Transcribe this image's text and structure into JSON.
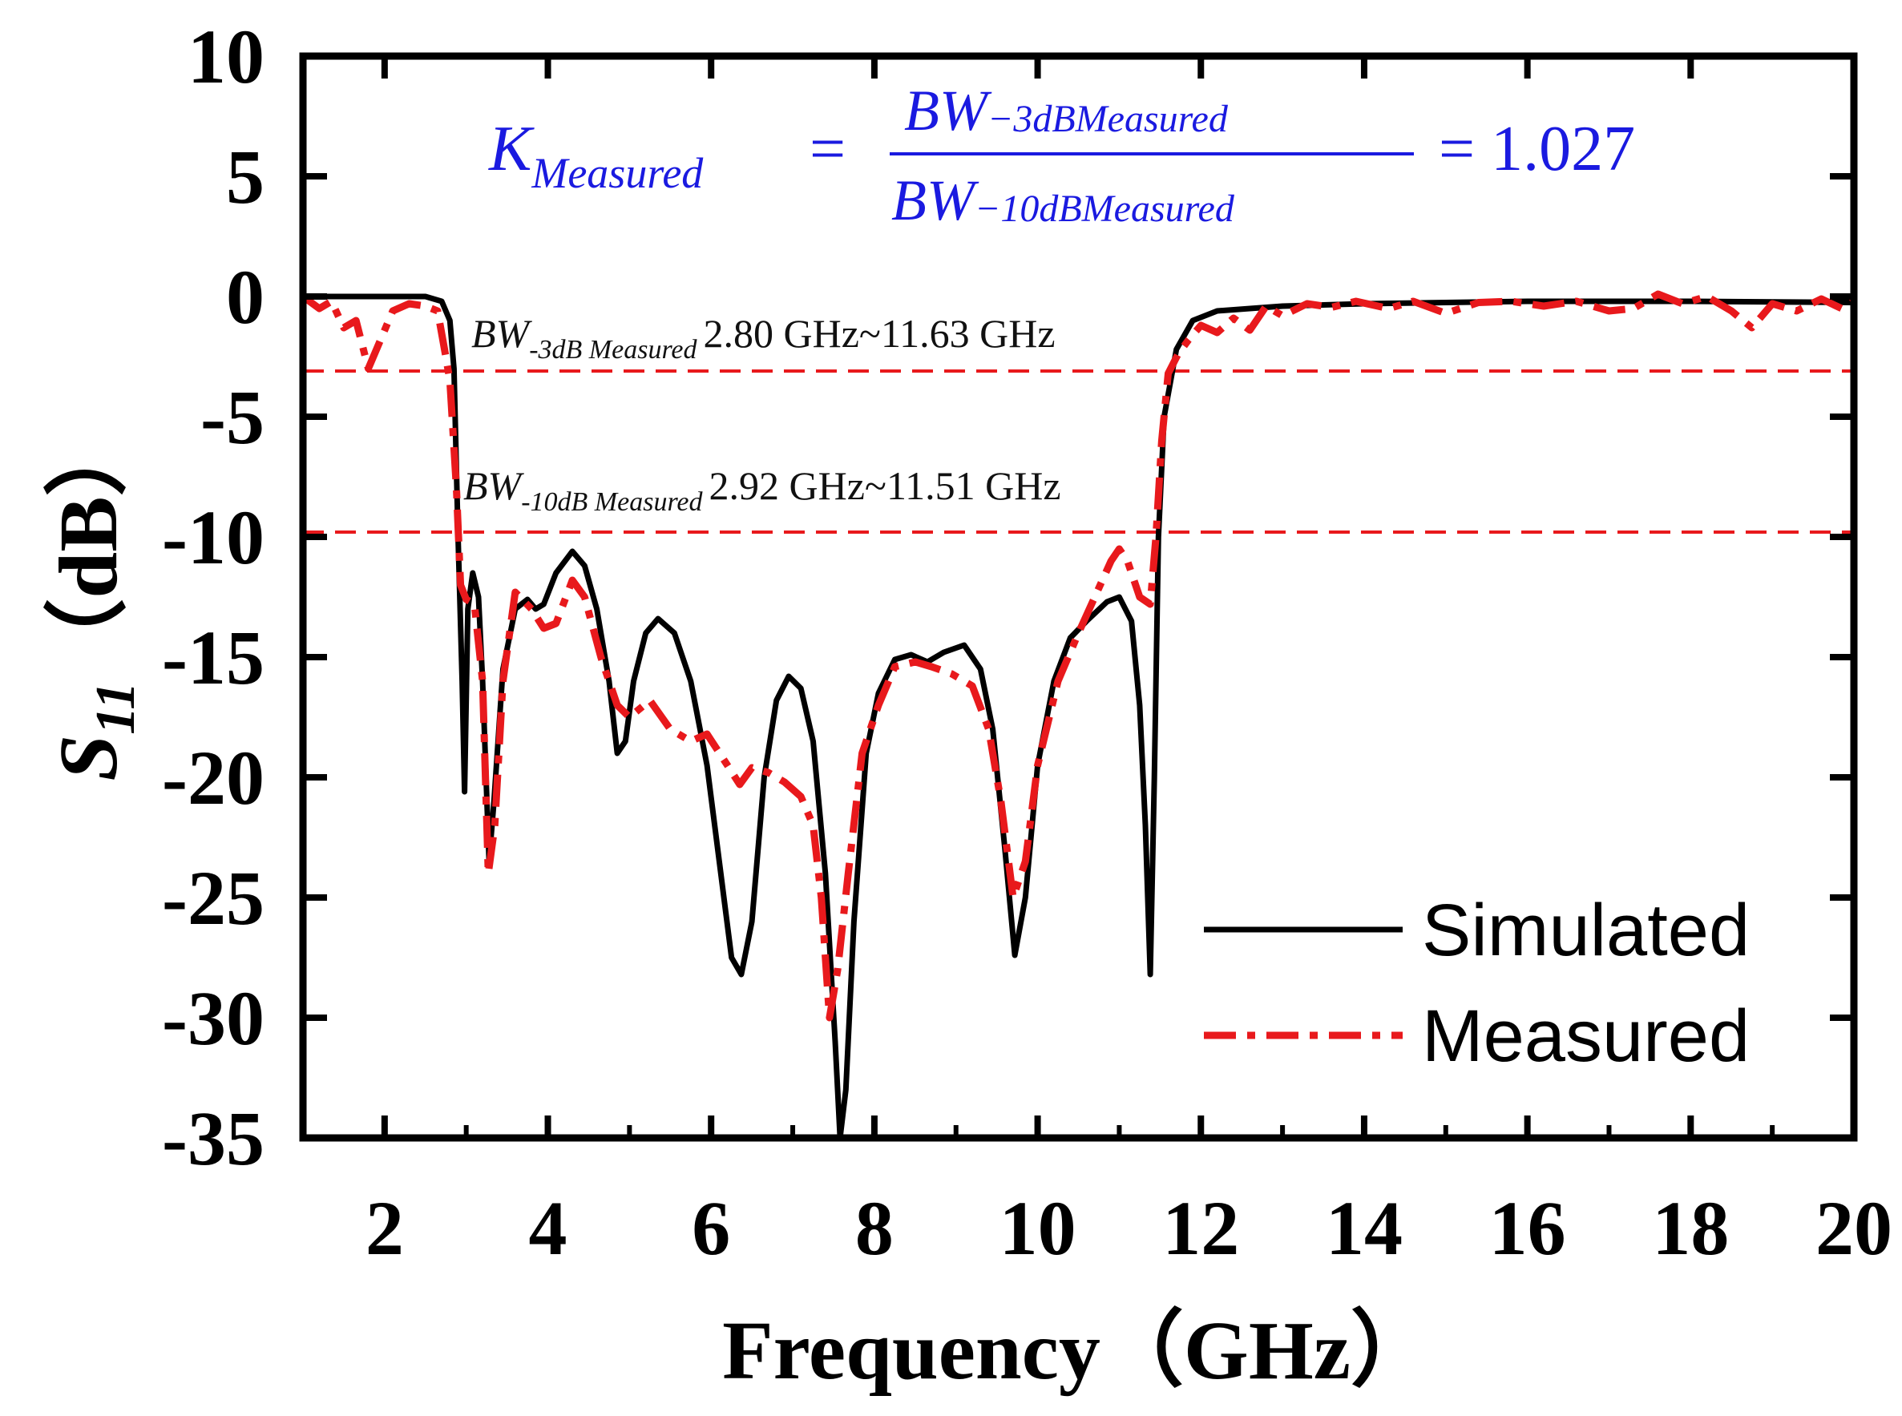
{
  "chart_data": {
    "type": "line",
    "title": "",
    "xlabel": "Frequency（GHz）",
    "ylabel": {
      "main": "S",
      "sub": "11",
      "unit": "（dB）"
    },
    "xlim": [
      1,
      20
    ],
    "ylim": [
      -35,
      10
    ],
    "x_ticks": [
      2,
      4,
      6,
      8,
      10,
      12,
      14,
      16,
      18,
      20
    ],
    "y_ticks": [
      10,
      5,
      0,
      -5,
      -10,
      -15,
      -20,
      -25,
      -30,
      -35
    ],
    "reference_lines": [
      {
        "name": "-3dB",
        "y": -3.1,
        "color": "#e8191c"
      },
      {
        "name": "-10dB",
        "y": -9.8,
        "color": "#e8191c"
      }
    ],
    "series": [
      {
        "name": "Simulated",
        "color": "#000000",
        "style": "solid",
        "points": [
          [
            1.0,
            0
          ],
          [
            2.5,
            0
          ],
          [
            2.7,
            -0.2
          ],
          [
            2.8,
            -1
          ],
          [
            2.85,
            -3
          ],
          [
            2.9,
            -10
          ],
          [
            2.95,
            -16
          ],
          [
            2.98,
            -20.6
          ],
          [
            3.02,
            -13
          ],
          [
            3.08,
            -11.5
          ],
          [
            3.15,
            -12.5
          ],
          [
            3.2,
            -16
          ],
          [
            3.28,
            -23.5
          ],
          [
            3.34,
            -21
          ],
          [
            3.45,
            -15.5
          ],
          [
            3.6,
            -13
          ],
          [
            3.75,
            -12.6
          ],
          [
            3.85,
            -13
          ],
          [
            3.95,
            -12.8
          ],
          [
            4.1,
            -11.5
          ],
          [
            4.3,
            -10.6
          ],
          [
            4.45,
            -11.2
          ],
          [
            4.6,
            -13
          ],
          [
            4.75,
            -16
          ],
          [
            4.85,
            -19
          ],
          [
            4.95,
            -18.5
          ],
          [
            5.05,
            -16
          ],
          [
            5.2,
            -14
          ],
          [
            5.35,
            -13.4
          ],
          [
            5.55,
            -14
          ],
          [
            5.75,
            -16
          ],
          [
            5.95,
            -19.5
          ],
          [
            6.1,
            -23.5
          ],
          [
            6.25,
            -27.5
          ],
          [
            6.37,
            -28.2
          ],
          [
            6.5,
            -26
          ],
          [
            6.65,
            -20
          ],
          [
            6.8,
            -16.8
          ],
          [
            6.95,
            -15.8
          ],
          [
            7.1,
            -16.3
          ],
          [
            7.25,
            -18.5
          ],
          [
            7.4,
            -24
          ],
          [
            7.52,
            -31
          ],
          [
            7.58,
            -35
          ],
          [
            7.65,
            -33
          ],
          [
            7.75,
            -26
          ],
          [
            7.9,
            -19
          ],
          [
            8.05,
            -16.5
          ],
          [
            8.25,
            -15.1
          ],
          [
            8.45,
            -14.9
          ],
          [
            8.65,
            -15.2
          ],
          [
            8.85,
            -14.8
          ],
          [
            9.1,
            -14.5
          ],
          [
            9.3,
            -15.5
          ],
          [
            9.45,
            -18
          ],
          [
            9.6,
            -23
          ],
          [
            9.72,
            -27.4
          ],
          [
            9.85,
            -25
          ],
          [
            10.0,
            -19.5
          ],
          [
            10.2,
            -16
          ],
          [
            10.4,
            -14.2
          ],
          [
            10.6,
            -13.5
          ],
          [
            10.85,
            -12.7
          ],
          [
            11.0,
            -12.5
          ],
          [
            11.15,
            -13.5
          ],
          [
            11.25,
            -17
          ],
          [
            11.32,
            -22
          ],
          [
            11.38,
            -28.2
          ],
          [
            11.43,
            -20
          ],
          [
            11.48,
            -10
          ],
          [
            11.55,
            -5
          ],
          [
            11.7,
            -2.2
          ],
          [
            11.9,
            -1.0
          ],
          [
            12.2,
            -0.6
          ],
          [
            13.0,
            -0.4
          ],
          [
            14.0,
            -0.3
          ],
          [
            16.0,
            -0.2
          ],
          [
            18.0,
            -0.2
          ],
          [
            20.0,
            -0.25
          ]
        ]
      },
      {
        "name": "Measured",
        "color": "#e8191c",
        "style": "dashdot",
        "points": [
          [
            1.0,
            0
          ],
          [
            1.2,
            -0.5
          ],
          [
            1.35,
            -0.2
          ],
          [
            1.5,
            -1.3
          ],
          [
            1.65,
            -1.0
          ],
          [
            1.8,
            -3.0
          ],
          [
            1.95,
            -1.8
          ],
          [
            2.1,
            -0.6
          ],
          [
            2.3,
            -0.3
          ],
          [
            2.5,
            -0.4
          ],
          [
            2.65,
            -0.6
          ],
          [
            2.75,
            -2.5
          ],
          [
            2.8,
            -3.5
          ],
          [
            2.88,
            -8
          ],
          [
            2.93,
            -12
          ],
          [
            3.0,
            -12.6
          ],
          [
            3.1,
            -12.8
          ],
          [
            3.2,
            -16
          ],
          [
            3.27,
            -24
          ],
          [
            3.35,
            -22
          ],
          [
            3.45,
            -16
          ],
          [
            3.6,
            -12.3
          ],
          [
            3.8,
            -13
          ],
          [
            3.95,
            -13.8
          ],
          [
            4.1,
            -13.6
          ],
          [
            4.3,
            -11.8
          ],
          [
            4.45,
            -12.5
          ],
          [
            4.65,
            -15
          ],
          [
            4.85,
            -17
          ],
          [
            5.0,
            -17.5
          ],
          [
            5.25,
            -16.8
          ],
          [
            5.5,
            -18
          ],
          [
            5.75,
            -18.5
          ],
          [
            5.95,
            -18.2
          ],
          [
            6.2,
            -19.5
          ],
          [
            6.35,
            -20.3
          ],
          [
            6.5,
            -19.6
          ],
          [
            6.7,
            -19.8
          ],
          [
            6.9,
            -20.2
          ],
          [
            7.1,
            -20.8
          ],
          [
            7.25,
            -22
          ],
          [
            7.35,
            -25
          ],
          [
            7.45,
            -30
          ],
          [
            7.55,
            -28
          ],
          [
            7.68,
            -24
          ],
          [
            7.85,
            -19
          ],
          [
            8.05,
            -17
          ],
          [
            8.25,
            -15.4
          ],
          [
            8.5,
            -15.2
          ],
          [
            8.7,
            -15.4
          ],
          [
            8.95,
            -15.7
          ],
          [
            9.2,
            -16.2
          ],
          [
            9.4,
            -18
          ],
          [
            9.55,
            -21
          ],
          [
            9.7,
            -25
          ],
          [
            9.85,
            -23.5
          ],
          [
            10.0,
            -19.5
          ],
          [
            10.25,
            -16
          ],
          [
            10.5,
            -14
          ],
          [
            10.7,
            -12.5
          ],
          [
            10.9,
            -11
          ],
          [
            11.0,
            -10.5
          ],
          [
            11.1,
            -11
          ],
          [
            11.25,
            -12.5
          ],
          [
            11.38,
            -12.8
          ],
          [
            11.45,
            -10
          ],
          [
            11.52,
            -6
          ],
          [
            11.6,
            -3.2
          ],
          [
            11.72,
            -2.4
          ],
          [
            11.85,
            -1.8
          ],
          [
            12.0,
            -1.2
          ],
          [
            12.2,
            -1.5
          ],
          [
            12.4,
            -0.9
          ],
          [
            12.6,
            -1.4
          ],
          [
            12.8,
            -0.4
          ],
          [
            13.0,
            -0.8
          ],
          [
            13.3,
            -0.3
          ],
          [
            13.6,
            -0.45
          ],
          [
            13.9,
            -0.2
          ],
          [
            14.3,
            -0.5
          ],
          [
            14.6,
            -0.2
          ],
          [
            15.0,
            -0.7
          ],
          [
            15.4,
            -0.25
          ],
          [
            15.8,
            -0.2
          ],
          [
            16.2,
            -0.4
          ],
          [
            16.6,
            -0.2
          ],
          [
            17.0,
            -0.6
          ],
          [
            17.3,
            -0.5
          ],
          [
            17.6,
            0.1
          ],
          [
            17.9,
            -0.3
          ],
          [
            18.2,
            0.0
          ],
          [
            18.5,
            -0.6
          ],
          [
            18.75,
            -1.3
          ],
          [
            19.0,
            -0.3
          ],
          [
            19.3,
            -0.6
          ],
          [
            19.6,
            -0.1
          ],
          [
            19.85,
            -0.5
          ],
          [
            20.0,
            -0.2
          ]
        ]
      }
    ],
    "annotations": {
      "bw3": {
        "symbol": "BW",
        "subscript": "-3dB Measured",
        "range": "2.80 GHz~11.63 GHz"
      },
      "bw10": {
        "symbol": "BW",
        "subscript": "-10dB Measured",
        "range": "2.92 GHz~11.51 GHz"
      },
      "formula": {
        "lhs": "K",
        "lhs_sub": "Measured",
        "equals": "=",
        "numerator": "BW",
        "numerator_sub": "−3dBMeasured",
        "denominator": "BW",
        "denominator_sub": "−10dBMeasured",
        "result": "= 1.027"
      }
    },
    "legend": {
      "position": "bottom-right",
      "entries": [
        "Simulated",
        "Measured"
      ]
    }
  }
}
